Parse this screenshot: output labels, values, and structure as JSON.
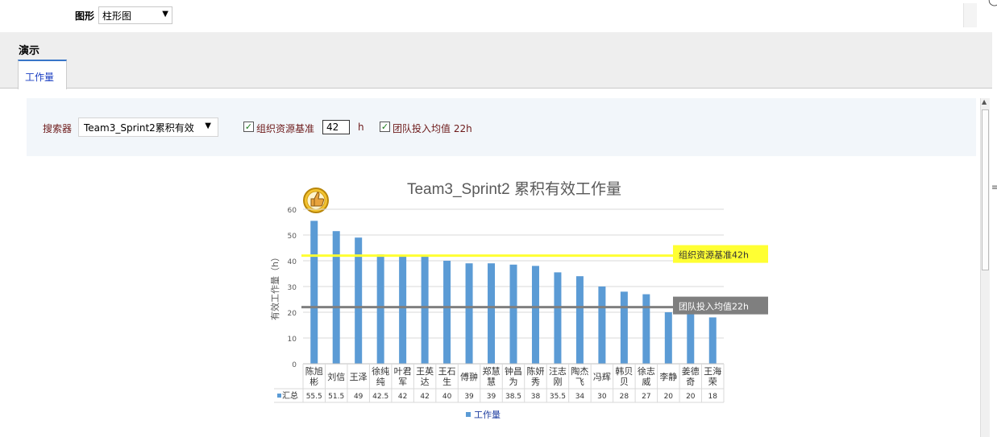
{
  "toolbar": {
    "chart_type_label": "图形",
    "chart_type_value": "柱形图"
  },
  "header": {
    "title": "演示",
    "tab_label": "工作量"
  },
  "filter": {
    "searcher_label": "搜索器",
    "searcher_value": "Team3_Sprint2累积有效",
    "baseline_checkbox_label": "组织资源基准",
    "baseline_value": "42",
    "baseline_unit": "h",
    "team_avg_checkbox_label": "团队投入均值 22h"
  },
  "icons": {
    "dropdown": "chevron-down-icon",
    "checkbox": "check-icon",
    "thumb": "thumbs-up-icon"
  },
  "colors": {
    "bar": "#5b9bd5",
    "baseline_line": "#ffff33",
    "baseline_label_bg": "#ffff33",
    "avg_line": "#7f7f7f",
    "avg_label_bg": "#7f7f7f"
  },
  "chart_data": {
    "type": "bar",
    "title": "Team3_Sprint2 累积有效工作量",
    "ylabel": "有效工作量（h）",
    "xlabel": "",
    "ylim": [
      0,
      60
    ],
    "yticks": [
      0,
      10,
      20,
      30,
      40,
      50,
      60
    ],
    "grid": true,
    "categories": [
      "陈旭彬",
      "刘信",
      "王泽",
      "徐纯纯",
      "叶君军",
      "王英达",
      "王石生",
      "傅翀",
      "郑慧慧",
      "钟昌为",
      "陈妍秀",
      "汪志刚",
      "陶杰飞",
      "冯辉",
      "韩贝贝",
      "徐志威",
      "李静",
      "姜德奇",
      "王海荣"
    ],
    "series": [
      {
        "name": "工作量",
        "values": [
          55.5,
          51.5,
          49,
          42.5,
          42,
          42,
          40,
          39,
          39,
          38.5,
          38,
          35.5,
          34,
          30,
          28,
          27,
          20,
          20,
          18
        ]
      }
    ],
    "table_row_label": "汇总",
    "legend": {
      "position": "bottom",
      "label": "工作量"
    },
    "reference_lines": [
      {
        "label": "组织资源基准42h",
        "value": 42
      },
      {
        "label": "团队投入均值22h",
        "value": 22
      }
    ]
  }
}
